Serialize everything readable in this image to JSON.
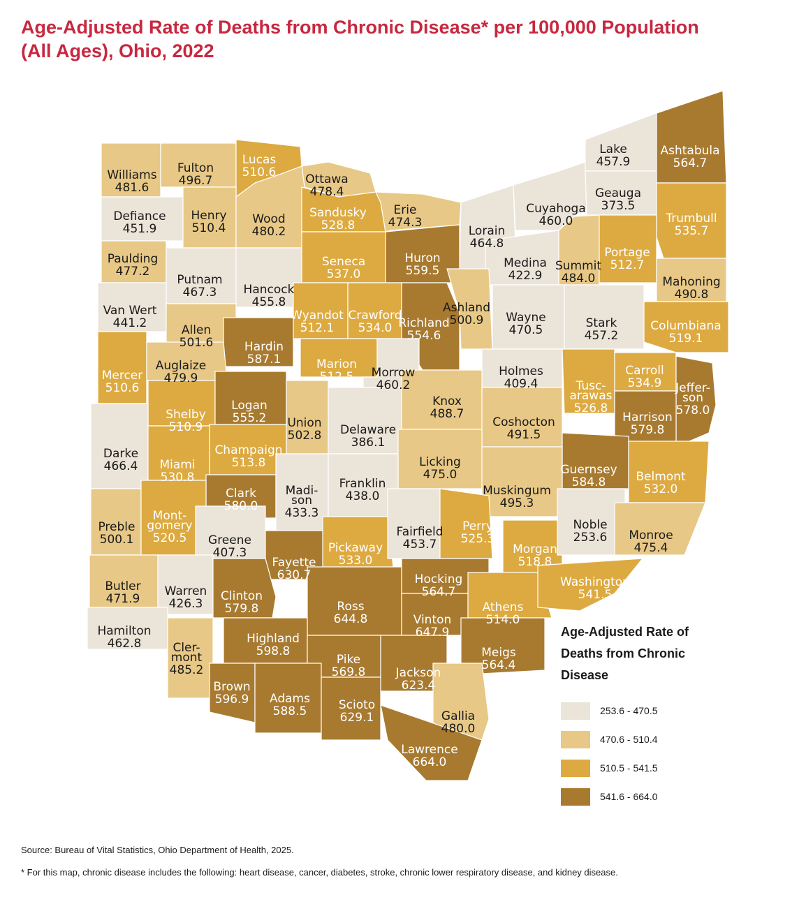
{
  "title": "Age-Adjusted Rate of Deaths from Chronic Disease* per 100,000 Population (All Ages), Ohio, 2022",
  "legend": {
    "title": "Age-Adjusted Rate of Deaths from Chronic Disease",
    "classes": [
      {
        "label": "253.6 - 470.5",
        "color": "#ebe4d9"
      },
      {
        "label": "470.6 - 510.4",
        "color": "#e8c886"
      },
      {
        "label": "510.5 - 541.5",
        "color": "#ddaa41"
      },
      {
        "label": "541.6 - 664.0",
        "color": "#a87a30"
      }
    ]
  },
  "counties": [
    {
      "name": "Williams",
      "value": "481.6",
      "class": 1
    },
    {
      "name": "Fulton",
      "value": "496.7",
      "class": 1
    },
    {
      "name": "Lucas",
      "value": "510.6",
      "class": 2
    },
    {
      "name": "Ottawa",
      "value": "478.4",
      "class": 1
    },
    {
      "name": "Defiance",
      "value": "451.9",
      "class": 0
    },
    {
      "name": "Henry",
      "value": "510.4",
      "class": 1
    },
    {
      "name": "Wood",
      "value": "480.2",
      "class": 1
    },
    {
      "name": "Sandusky",
      "value": "528.8",
      "class": 2
    },
    {
      "name": "Erie",
      "value": "474.3",
      "class": 1
    },
    {
      "name": "Lorain",
      "value": "464.8",
      "class": 0
    },
    {
      "name": "Cuyahoga",
      "value": "460.0",
      "class": 0
    },
    {
      "name": "Lake",
      "value": "457.9",
      "class": 0
    },
    {
      "name": "Geauga",
      "value": "373.5",
      "class": 0
    },
    {
      "name": "Ashtabula",
      "value": "564.7",
      "class": 3
    },
    {
      "name": "Trumbull",
      "value": "535.7",
      "class": 2
    },
    {
      "name": "Paulding",
      "value": "477.2",
      "class": 1
    },
    {
      "name": "Putnam",
      "value": "467.3",
      "class": 0
    },
    {
      "name": "Hancock",
      "value": "455.8",
      "class": 0
    },
    {
      "name": "Seneca",
      "value": "537.0",
      "class": 2
    },
    {
      "name": "Huron",
      "value": "559.5",
      "class": 3
    },
    {
      "name": "Medina",
      "value": "422.9",
      "class": 0
    },
    {
      "name": "Summit",
      "value": "484.0",
      "class": 1
    },
    {
      "name": "Portage",
      "value": "512.7",
      "class": 2
    },
    {
      "name": "Mahoning",
      "value": "490.8",
      "class": 1
    },
    {
      "name": "Van Wert",
      "value": "441.2",
      "class": 0
    },
    {
      "name": "Allen",
      "value": "501.6",
      "class": 1
    },
    {
      "name": "Hardin",
      "value": "587.1",
      "class": 3
    },
    {
      "name": "Wyandot",
      "value": "512.1",
      "class": 2
    },
    {
      "name": "Crawford",
      "value": "534.0",
      "class": 2
    },
    {
      "name": "Richland",
      "value": "554.6",
      "class": 3
    },
    {
      "name": "Ashland",
      "value": "500.9",
      "class": 1
    },
    {
      "name": "Wayne",
      "value": "470.5",
      "class": 0
    },
    {
      "name": "Stark",
      "value": "457.2",
      "class": 0
    },
    {
      "name": "Columbiana",
      "value": "519.1",
      "class": 2
    },
    {
      "name": "Mercer",
      "value": "510.6",
      "class": 2
    },
    {
      "name": "Auglaize",
      "value": "479.9",
      "class": 1
    },
    {
      "name": "Marion",
      "value": "512.5",
      "class": 2
    },
    {
      "name": "Morrow",
      "value": "460.2",
      "class": 0
    },
    {
      "name": "Holmes",
      "value": "409.4",
      "class": 0
    },
    {
      "name": "Tuscarawas",
      "value": "526.8",
      "class": 2
    },
    {
      "name": "Carroll",
      "value": "534.9",
      "class": 2
    },
    {
      "name": "Jefferson",
      "value": "578.0",
      "class": 3
    },
    {
      "name": "Shelby",
      "value": "510.9",
      "class": 2
    },
    {
      "name": "Logan",
      "value": "555.2",
      "class": 3
    },
    {
      "name": "Union",
      "value": "502.8",
      "class": 1
    },
    {
      "name": "Delaware",
      "value": "386.1",
      "class": 0
    },
    {
      "name": "Knox",
      "value": "488.7",
      "class": 1
    },
    {
      "name": "Coshocton",
      "value": "491.5",
      "class": 1
    },
    {
      "name": "Harrison",
      "value": "579.8",
      "class": 3
    },
    {
      "name": "Darke",
      "value": "466.4",
      "class": 0
    },
    {
      "name": "Miami",
      "value": "530.8",
      "class": 2
    },
    {
      "name": "Champaign",
      "value": "513.8",
      "class": 2
    },
    {
      "name": "Licking",
      "value": "475.0",
      "class": 1
    },
    {
      "name": "Guernsey",
      "value": "584.8",
      "class": 3
    },
    {
      "name": "Belmont",
      "value": "532.0",
      "class": 2
    },
    {
      "name": "Clark",
      "value": "580.0",
      "class": 3
    },
    {
      "name": "Madison",
      "value": "433.3",
      "class": 0
    },
    {
      "name": "Franklin",
      "value": "438.0",
      "class": 0
    },
    {
      "name": "Muskingum",
      "value": "495.3",
      "class": 1
    },
    {
      "name": "Preble",
      "value": "500.1",
      "class": 1
    },
    {
      "name": "Montgomery",
      "value": "520.5",
      "class": 2
    },
    {
      "name": "Greene",
      "value": "407.3",
      "class": 0
    },
    {
      "name": "Fayette",
      "value": "630.7",
      "class": 3
    },
    {
      "name": "Pickaway",
      "value": "533.0",
      "class": 2
    },
    {
      "name": "Fairfield",
      "value": "453.7",
      "class": 0
    },
    {
      "name": "Perry",
      "value": "525.3",
      "class": 2
    },
    {
      "name": "Morgan",
      "value": "518.8",
      "class": 2
    },
    {
      "name": "Noble",
      "value": "253.6",
      "class": 0
    },
    {
      "name": "Monroe",
      "value": "475.4",
      "class": 1
    },
    {
      "name": "Butler",
      "value": "471.9",
      "class": 1
    },
    {
      "name": "Warren",
      "value": "426.3",
      "class": 0
    },
    {
      "name": "Clinton",
      "value": "579.8",
      "class": 3
    },
    {
      "name": "Ross",
      "value": "644.8",
      "class": 3
    },
    {
      "name": "Hocking",
      "value": "564.7",
      "class": 3
    },
    {
      "name": "Vinton",
      "value": "647.9",
      "class": 3
    },
    {
      "name": "Athens",
      "value": "514.0",
      "class": 2
    },
    {
      "name": "Washington",
      "value": "541.5",
      "class": 2
    },
    {
      "name": "Hamilton",
      "value": "462.8",
      "class": 0
    },
    {
      "name": "Clermont",
      "value": "485.2",
      "class": 1
    },
    {
      "name": "Highland",
      "value": "598.8",
      "class": 3
    },
    {
      "name": "Pike",
      "value": "569.8",
      "class": 3
    },
    {
      "name": "Jackson",
      "value": "623.4",
      "class": 3
    },
    {
      "name": "Meigs",
      "value": "564.4",
      "class": 3
    },
    {
      "name": "Brown",
      "value": "596.9",
      "class": 3
    },
    {
      "name": "Adams",
      "value": "588.5",
      "class": 3
    },
    {
      "name": "Scioto",
      "value": "629.1",
      "class": 3
    },
    {
      "name": "Gallia",
      "value": "480.0",
      "class": 1
    },
    {
      "name": "Lawrence",
      "value": "664.0",
      "class": 3
    }
  ],
  "source": "Source: Bureau of Vital Statistics, Ohio Department of Health, 2025.",
  "footnote": "* For this map, chronic disease includes the following: heart disease, cancer, diabetes, stroke, chronic lower respiratory disease, and kidney disease."
}
